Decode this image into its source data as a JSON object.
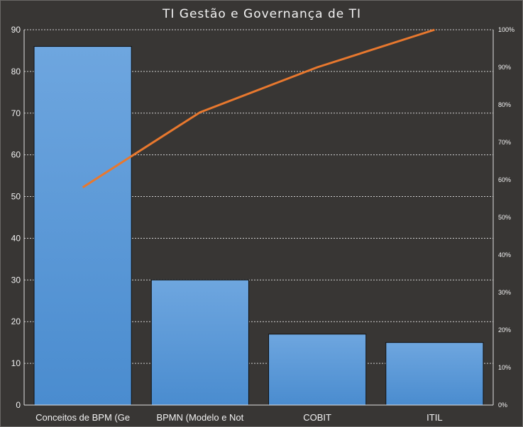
{
  "chart_data": {
    "type": "bar",
    "title": "TI Gestão e Governança de TI",
    "categories": [
      "Conceitos de BPM (Ge",
      "BPMN (Modelo e Not",
      "COBIT",
      "ITIL"
    ],
    "series": [
      {
        "type": "bar",
        "axis": "left",
        "values": [
          86,
          30,
          17,
          15
        ]
      },
      {
        "type": "line",
        "axis": "right",
        "values": [
          58,
          78,
          90,
          100
        ]
      }
    ],
    "y_left": {
      "ylim": [
        0,
        90
      ],
      "ticks": [
        "0",
        "10",
        "20",
        "30",
        "40",
        "50",
        "60",
        "70",
        "80",
        "90"
      ]
    },
    "y_right": {
      "ylim": [
        0,
        100
      ],
      "ticks": [
        "0%",
        "10%",
        "20%",
        "30%",
        "40%",
        "50%",
        "60%",
        "70%",
        "80%",
        "90%",
        "100%"
      ]
    },
    "grid": true,
    "legend": "none",
    "colors": {
      "bar_top": "#6ea6df",
      "bar_bottom": "#4a8ccf",
      "line": "#e8782e",
      "grid": "#cfcfcf",
      "background": "#383634"
    }
  }
}
